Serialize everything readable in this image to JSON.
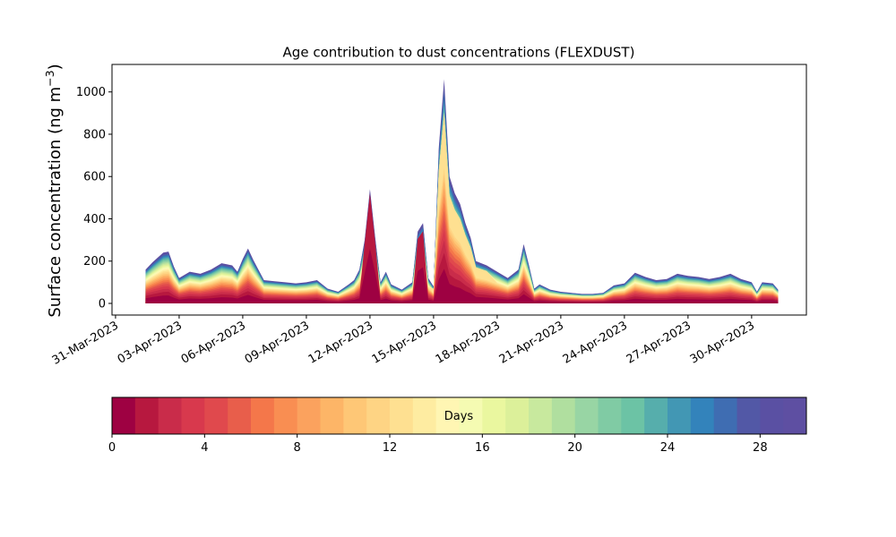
{
  "chart_data": {
    "type": "area",
    "title": "Age contribution to dust concentrations (FLEXDUST)",
    "ylabel_main": "Surface concentration (ng m",
    "ylabel_sup": "−3",
    "ylabel_close": ")",
    "xlabel": "",
    "stacked": true,
    "x_range": [
      "2023-03-30T20:00",
      "2023-05-02T14:00"
    ],
    "ylim": [
      -55,
      1130
    ],
    "yticks": [
      0,
      200,
      400,
      600,
      800,
      1000
    ],
    "xticks": [
      {
        "date": "2023-03-31",
        "label": "31-Mar-2023"
      },
      {
        "date": "2023-04-03",
        "label": "03-Apr-2023"
      },
      {
        "date": "2023-04-06",
        "label": "06-Apr-2023"
      },
      {
        "date": "2023-04-09",
        "label": "09-Apr-2023"
      },
      {
        "date": "2023-04-12",
        "label": "12-Apr-2023"
      },
      {
        "date": "2023-04-15",
        "label": "15-Apr-2023"
      },
      {
        "date": "2023-04-18",
        "label": "18-Apr-2023"
      },
      {
        "date": "2023-04-21",
        "label": "21-Apr-2023"
      },
      {
        "date": "2023-04-24",
        "label": "24-Apr-2023"
      },
      {
        "date": "2023-04-27",
        "label": "27-Apr-2023"
      },
      {
        "date": "2023-04-30",
        "label": "30-Apr-2023"
      }
    ],
    "total": {
      "x": [
        "2023-04-01T10:00",
        "2023-04-01T18:00",
        "2023-04-02T06:00",
        "2023-04-02T12:00",
        "2023-04-02T18:00",
        "2023-04-03T00:00",
        "2023-04-03T12:00",
        "2023-04-04T00:00",
        "2023-04-04T12:00",
        "2023-04-05T00:00",
        "2023-04-05T12:00",
        "2023-04-05T18:00",
        "2023-04-06T00:00",
        "2023-04-06T06:00",
        "2023-04-06T12:00",
        "2023-04-07T00:00",
        "2023-04-07T12:00",
        "2023-04-08T00:00",
        "2023-04-08T12:00",
        "2023-04-09T00:00",
        "2023-04-09T12:00",
        "2023-04-10T00:00",
        "2023-04-10T12:00",
        "2023-04-11T00:00",
        "2023-04-11T06:00",
        "2023-04-11T12:00",
        "2023-04-11T18:00",
        "2023-04-12T00:00",
        "2023-04-12T06:00",
        "2023-04-12T12:00",
        "2023-04-12T18:00",
        "2023-04-13T00:00",
        "2023-04-13T12:00",
        "2023-04-14T00:00",
        "2023-04-14T06:00",
        "2023-04-14T12:00",
        "2023-04-14T18:00",
        "2023-04-15T00:00",
        "2023-04-15T06:00",
        "2023-04-15T12:00",
        "2023-04-15T18:00",
        "2023-04-16T00:00",
        "2023-04-16T06:00",
        "2023-04-16T12:00",
        "2023-04-16T18:00",
        "2023-04-17T00:00",
        "2023-04-17T12:00",
        "2023-04-18T00:00",
        "2023-04-18T12:00",
        "2023-04-19T00:00",
        "2023-04-19T06:00",
        "2023-04-19T12:00",
        "2023-04-19T18:00",
        "2023-04-20T00:00",
        "2023-04-20T12:00",
        "2023-04-21T00:00",
        "2023-04-21T12:00",
        "2023-04-22T00:00",
        "2023-04-22T12:00",
        "2023-04-23T00:00",
        "2023-04-23T12:00",
        "2023-04-24T00:00",
        "2023-04-24T12:00",
        "2023-04-25T00:00",
        "2023-04-25T12:00",
        "2023-04-26T00:00",
        "2023-04-26T12:00",
        "2023-04-27T00:00",
        "2023-04-27T12:00",
        "2023-04-28T00:00",
        "2023-04-28T12:00",
        "2023-04-29T00:00",
        "2023-04-29T12:00",
        "2023-04-30T00:00",
        "2023-04-30T06:00",
        "2023-04-30T12:00",
        "2023-05-01T00:00",
        "2023-05-01T06:00"
      ],
      "values": [
        160,
        195,
        240,
        245,
        175,
        120,
        150,
        140,
        160,
        190,
        180,
        150,
        210,
        260,
        205,
        110,
        105,
        100,
        95,
        100,
        110,
        70,
        55,
        90,
        110,
        160,
        300,
        540,
        310,
        100,
        150,
        90,
        65,
        100,
        340,
        380,
        120,
        80,
        740,
        1060,
        600,
        520,
        470,
        380,
        310,
        200,
        180,
        150,
        120,
        160,
        280,
        180,
        70,
        90,
        65,
        55,
        50,
        45,
        45,
        50,
        85,
        95,
        145,
        125,
        110,
        115,
        140,
        130,
        125,
        115,
        125,
        140,
        115,
        100,
        55,
        100,
        95,
        65
      ]
    },
    "colorbar": {
      "label": "Days",
      "min": 0,
      "max": 30,
      "ticks": [
        0,
        4,
        8,
        12,
        16,
        20,
        24,
        28
      ],
      "colors": [
        "#9e0142",
        "#b7183f",
        "#c92c4a",
        "#d8394d",
        "#e0494d",
        "#e85e4b",
        "#f4774a",
        "#f98e52",
        "#fba25e",
        "#fdb567",
        "#fec776",
        "#fed484",
        "#fee091",
        "#feeca1",
        "#fff6b3",
        "#f5fbb2",
        "#eaf79f",
        "#dcf09a",
        "#c8e99e",
        "#b0df9f",
        "#98d5a4",
        "#80cba4",
        "#6cc3a5",
        "#56aeac",
        "#4297b4",
        "#3383bb",
        "#3f6db2",
        "#5258a6",
        "#5a50a3",
        "#5e4fa2"
      ]
    }
  }
}
